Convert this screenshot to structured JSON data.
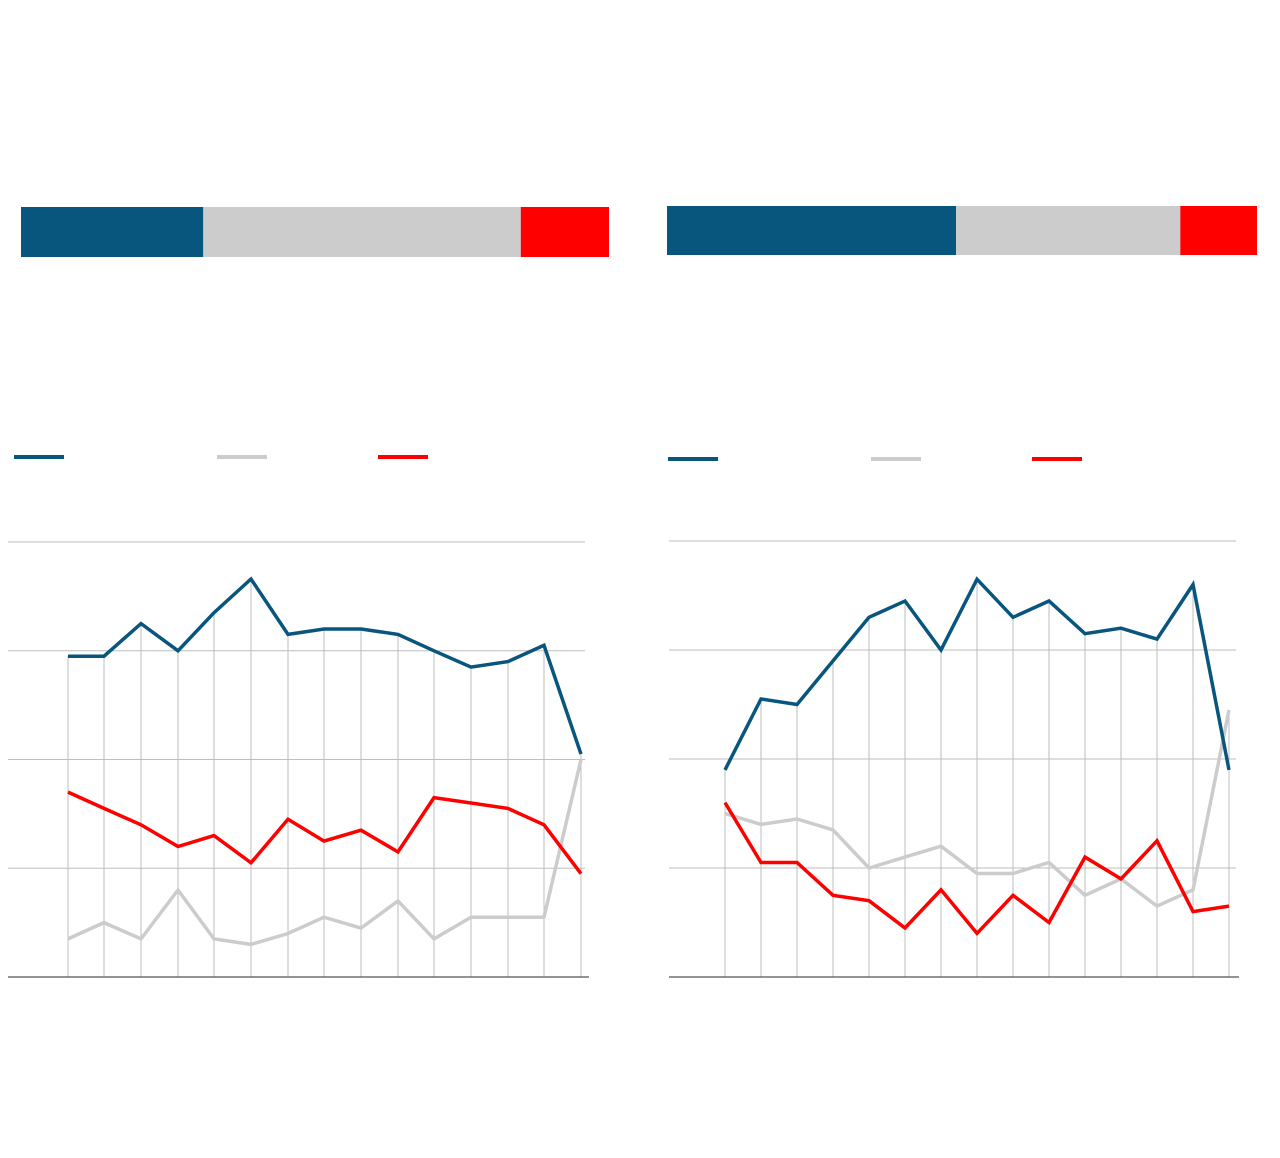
{
  "colors": {
    "series_1": "#08557e",
    "series_2": "#cccccc",
    "series_3": "#ff0000",
    "gridline": "#bdbdbd",
    "baseline": "#555555"
  },
  "chart_data": [
    {
      "type": "bar",
      "stacked": true,
      "orientation": "horizontal",
      "segments": [
        {
          "series_index": 0,
          "value": 31.0
        },
        {
          "series_index": 1,
          "value": 54.0
        },
        {
          "series_index": 2,
          "value": 15.0
        }
      ]
    },
    {
      "type": "bar",
      "stacked": true,
      "orientation": "horizontal",
      "segments": [
        {
          "series_index": 0,
          "value": 49.0
        },
        {
          "series_index": 1,
          "value": 38.0
        },
        {
          "series_index": 2,
          "value": 13.0
        }
      ]
    },
    {
      "type": "line",
      "legend": "top",
      "grid": true,
      "ylim": [
        0,
        40
      ],
      "y_gridlines": [
        0,
        10,
        20,
        30,
        40
      ],
      "series": [
        {
          "values": [
            29.5,
            29.5,
            32.5,
            30.0,
            33.5,
            36.6,
            31.5,
            32.0,
            32.0,
            31.5,
            30.0,
            28.5,
            29.0,
            30.5,
            20.5
          ]
        },
        {
          "values": [
            3.5,
            5.0,
            3.5,
            8.0,
            3.5,
            3.0,
            4.0,
            5.5,
            4.5,
            7.0,
            3.5,
            5.5,
            5.5,
            5.5,
            20.0
          ]
        },
        {
          "values": [
            17.0,
            15.5,
            14.0,
            12.0,
            13.0,
            10.5,
            14.5,
            12.5,
            13.5,
            11.5,
            16.5,
            16.0,
            15.5,
            14.0,
            9.5
          ]
        }
      ]
    },
    {
      "type": "line",
      "legend": "top",
      "grid": true,
      "ylim": [
        0,
        40
      ],
      "y_gridlines": [
        0,
        10,
        20,
        30,
        40
      ],
      "series": [
        {
          "values": [
            19.0,
            25.5,
            25.0,
            29.0,
            33.0,
            34.5,
            30.0,
            36.5,
            33.0,
            34.5,
            31.5,
            32.0,
            31.0,
            36.0,
            19.0
          ]
        },
        {
          "values": [
            15.0,
            14.0,
            14.5,
            13.5,
            10.0,
            11.0,
            12.0,
            9.5,
            9.5,
            10.5,
            7.5,
            9.0,
            6.5,
            8.0,
            24.5
          ]
        },
        {
          "values": [
            16.0,
            10.5,
            10.5,
            7.5,
            7.0,
            4.5,
            8.0,
            4.0,
            7.5,
            5.0,
            11.0,
            9.0,
            12.5,
            6.0,
            6.5
          ]
        }
      ]
    }
  ]
}
